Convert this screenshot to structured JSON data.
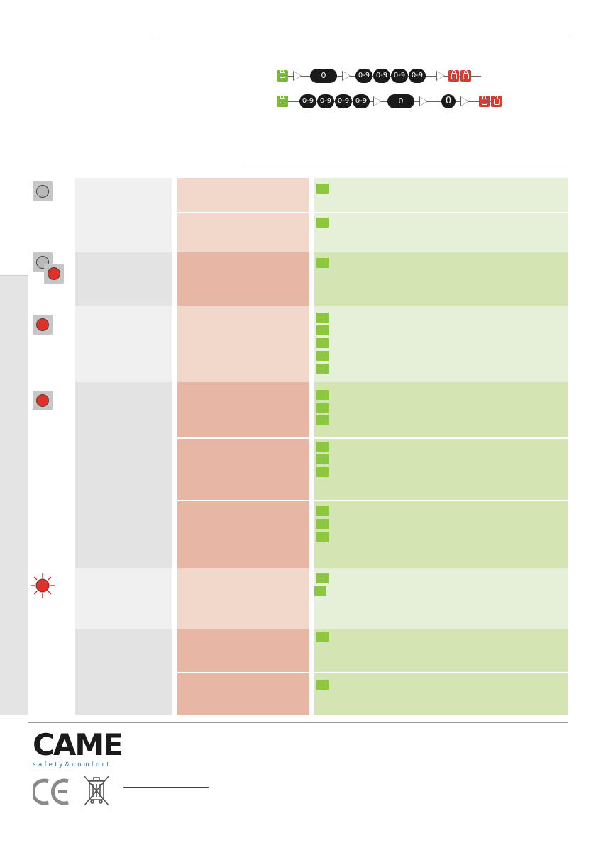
{
  "sequences": {
    "row1": {
      "digit_labels": [
        "0-9",
        "0-9",
        "0-9",
        "0-9"
      ],
      "center_labels": [
        "0"
      ]
    },
    "row2": {
      "digit_labels": [
        "0-9",
        "0-9",
        "0-9",
        "0-9"
      ],
      "center_labels": [
        "0",
        "0"
      ]
    }
  },
  "brand": {
    "name": "CAME",
    "tagline": "safety&comfort"
  },
  "colors": {
    "accent_green": "#8dc63f",
    "accent_red": "#d63c32",
    "brand_blue": "#2e6db4"
  },
  "icons": [
    "unlock-key-icon",
    "lock-key-icon",
    "led-off-icon",
    "led-on-icon",
    "led-blinking-icon",
    "ce-mark-icon",
    "weee-bin-icon"
  ]
}
